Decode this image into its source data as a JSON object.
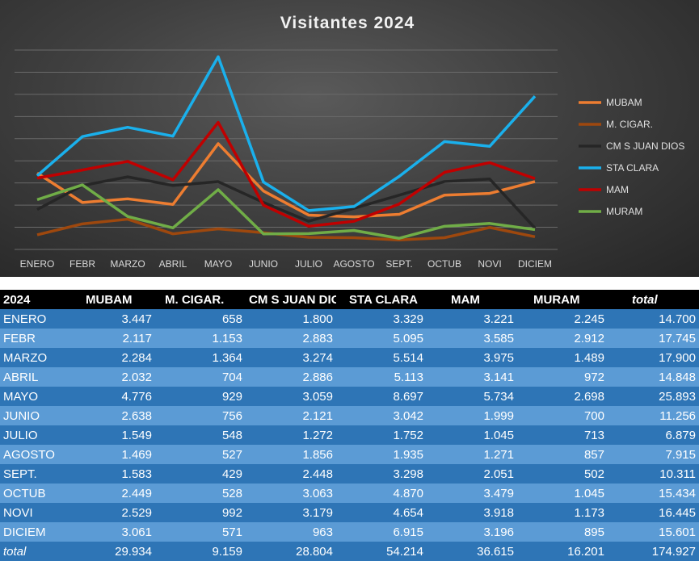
{
  "chart_data": {
    "type": "line",
    "title": "Visitantes 2024",
    "categories": [
      "ENERO",
      "FEBR",
      "MARZO",
      "ABRIL",
      "MAYO",
      "JUNIO",
      "JULIO",
      "AGOSTO",
      "SEPT.",
      "OCTUB",
      "NOVI",
      "DICIEM"
    ],
    "ylim": [
      0,
      9000
    ],
    "grid": true,
    "legend_position": "right",
    "series": [
      {
        "name": "MUBAM",
        "color": "#ed7d31",
        "values": [
          3447,
          2117,
          2284,
          2032,
          4776,
          2638,
          1549,
          1469,
          1583,
          2449,
          2529,
          3061
        ]
      },
      {
        "name": "M. CIGAR.",
        "color": "#9e480e",
        "values": [
          658,
          1153,
          1364,
          704,
          929,
          756,
          548,
          527,
          429,
          528,
          992,
          571
        ]
      },
      {
        "name": "CM S JUAN DIOS",
        "color": "#262626",
        "values": [
          1800,
          2883,
          3274,
          2886,
          3059,
          2121,
          1272,
          1856,
          2448,
          3063,
          3179,
          963
        ]
      },
      {
        "name": "STA CLARA",
        "color": "#1ab0ec",
        "values": [
          3329,
          5095,
          5514,
          5113,
          8697,
          3042,
          1752,
          1935,
          3298,
          4870,
          4654,
          6915
        ]
      },
      {
        "name": "MAM",
        "color": "#c00000",
        "values": [
          3221,
          3585,
          3975,
          3141,
          5734,
          1999,
          1045,
          1271,
          2051,
          3479,
          3918,
          3196
        ]
      },
      {
        "name": "MURAM",
        "color": "#70ad47",
        "values": [
          2245,
          2912,
          1489,
          972,
          2698,
          700,
          713,
          857,
          502,
          1045,
          1173,
          895
        ]
      }
    ]
  },
  "table": {
    "corner": "2024",
    "headers": [
      "MUBAM",
      "M. CIGAR.",
      "CM S JUAN DIOS",
      "STA CLARA",
      "MAM",
      "MURAM"
    ],
    "total_header": "total",
    "rows": [
      {
        "month": "ENERO",
        "values": [
          "3.447",
          "658",
          "1.800",
          "3.329",
          "3.221",
          "2.245"
        ],
        "total": "14.700"
      },
      {
        "month": "FEBR",
        "values": [
          "2.117",
          "1.153",
          "2.883",
          "5.095",
          "3.585",
          "2.912"
        ],
        "total": "17.745"
      },
      {
        "month": "MARZO",
        "values": [
          "2.284",
          "1.364",
          "3.274",
          "5.514",
          "3.975",
          "1.489"
        ],
        "total": "17.900"
      },
      {
        "month": "ABRIL",
        "values": [
          "2.032",
          "704",
          "2.886",
          "5.113",
          "3.141",
          "972"
        ],
        "total": "14.848"
      },
      {
        "month": "MAYO",
        "values": [
          "4.776",
          "929",
          "3.059",
          "8.697",
          "5.734",
          "2.698"
        ],
        "total": "25.893"
      },
      {
        "month": "JUNIO",
        "values": [
          "2.638",
          "756",
          "2.121",
          "3.042",
          "1.999",
          "700"
        ],
        "total": "11.256"
      },
      {
        "month": "JULIO",
        "values": [
          "1.549",
          "548",
          "1.272",
          "1.752",
          "1.045",
          "713"
        ],
        "total": "6.879"
      },
      {
        "month": "AGOSTO",
        "values": [
          "1.469",
          "527",
          "1.856",
          "1.935",
          "1.271",
          "857"
        ],
        "total": "7.915"
      },
      {
        "month": "SEPT.",
        "values": [
          "1.583",
          "429",
          "2.448",
          "3.298",
          "2.051",
          "502"
        ],
        "total": "10.311"
      },
      {
        "month": "OCTUB",
        "values": [
          "2.449",
          "528",
          "3.063",
          "4.870",
          "3.479",
          "1.045"
        ],
        "total": "15.434"
      },
      {
        "month": "NOVI",
        "values": [
          "2.529",
          "992",
          "3.179",
          "4.654",
          "3.918",
          "1.173"
        ],
        "total": "16.445"
      },
      {
        "month": "DICIEM",
        "values": [
          "3.061",
          "571",
          "963",
          "6.915",
          "3.196",
          "895"
        ],
        "total": "15.601"
      }
    ],
    "footer": {
      "label": "total",
      "values": [
        "29.934",
        "9.159",
        "28.804",
        "54.214",
        "36.615",
        "16.201"
      ],
      "total": "174.927"
    }
  }
}
